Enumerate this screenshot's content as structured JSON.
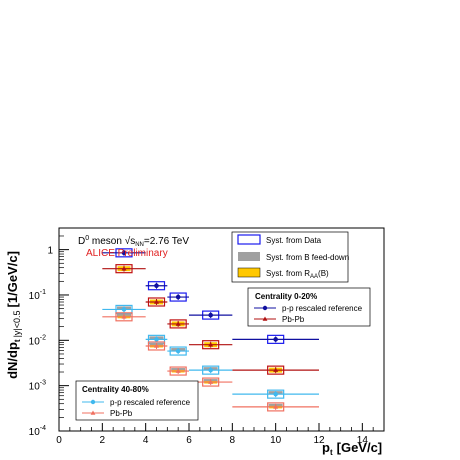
{
  "chart_data": {
    "type": "scatter",
    "xlabel": "p",
    "xlabel_sub": "t",
    "xlabel_unit": "[GeV/c]",
    "ylabel": "dN/dp",
    "ylabel_sub": "t",
    "ylabel_sub2": "|y|<0.5",
    "ylabel_unit": "[1/GeV/c]",
    "xlim": [
      0,
      15
    ],
    "ylim": [
      0.0001,
      3
    ],
    "y_log": true,
    "x_ticks": [
      "0",
      "2",
      "4",
      "6",
      "8",
      "10",
      "12",
      "14"
    ],
    "y_ticks": [
      "10",
      "10",
      "10",
      "10",
      "1"
    ],
    "y_tick_exps": [
      "-4",
      "-3",
      "-2",
      "-1",
      ""
    ],
    "annotation_line1_a": "D",
    "annotation_line1_sup": "0",
    "annotation_line1_b": " meson  ",
    "annotation_sqrt": "√",
    "annotation_s": "s",
    "annotation_nn": "NN",
    "annotation_energy": "=2.76 TeV",
    "annotation_line2": "ALICE Preliminary",
    "syst_legend": [
      {
        "label": "Syst. from Data",
        "style": "open",
        "color": "#1a1aee"
      },
      {
        "label": "Syst. from B feed-down",
        "style": "filled",
        "color": "#a0a0a0"
      },
      {
        "label": "Syst. from R",
        "label_sub": "AA",
        "label_after": "(B)",
        "style": "filled",
        "color": "#ffc800"
      }
    ],
    "legend_central": {
      "heading": "Centrality 0-20%",
      "entries": [
        "p-p rescaled reference",
        "Pb-Pb"
      ]
    },
    "legend_peripheral": {
      "heading": "Centrality 40-80%",
      "entries": [
        "p-p rescaled reference",
        "Pb-Pb"
      ]
    },
    "series": [
      {
        "name": "p-p rescaled reference",
        "centrality": "0-20%",
        "color": "#1010a0",
        "marker": "circle",
        "box": "#1a1aee",
        "x": [
          3,
          4.5,
          5.5,
          7,
          10
        ],
        "xerr": [
          1,
          0.5,
          0.5,
          1,
          2
        ],
        "y": [
          0.85,
          0.16,
          0.09,
          0.036,
          0.0105
        ]
      },
      {
        "name": "Pb-Pb",
        "centrality": "0-20%",
        "color": "#b01010",
        "marker": "triangle",
        "box": "#c01010",
        "x": [
          3,
          4.5,
          5.5,
          7,
          10
        ],
        "xerr": [
          1,
          0.5,
          0.5,
          1,
          2
        ],
        "y": [
          0.38,
          0.07,
          0.023,
          0.008,
          0.0022
        ]
      },
      {
        "name": "p-p rescaled reference",
        "centrality": "40-80%",
        "color": "#40b8ee",
        "marker": "circle",
        "box": "#40b8ee",
        "x": [
          3,
          4.5,
          5.5,
          7,
          10
        ],
        "xerr": [
          1,
          0.5,
          0.5,
          1,
          2
        ],
        "y": [
          0.048,
          0.0105,
          0.0058,
          0.0022,
          0.00065
        ]
      },
      {
        "name": "Pb-Pb",
        "centrality": "40-80%",
        "color": "#f07060",
        "marker": "triangle",
        "box": "#f07060",
        "x": [
          3,
          4.5,
          5.5,
          7,
          10
        ],
        "xerr": [
          1,
          0.5,
          0.5,
          1,
          2
        ],
        "y": [
          0.033,
          0.0075,
          0.0021,
          0.0012,
          0.00034
        ]
      }
    ]
  }
}
